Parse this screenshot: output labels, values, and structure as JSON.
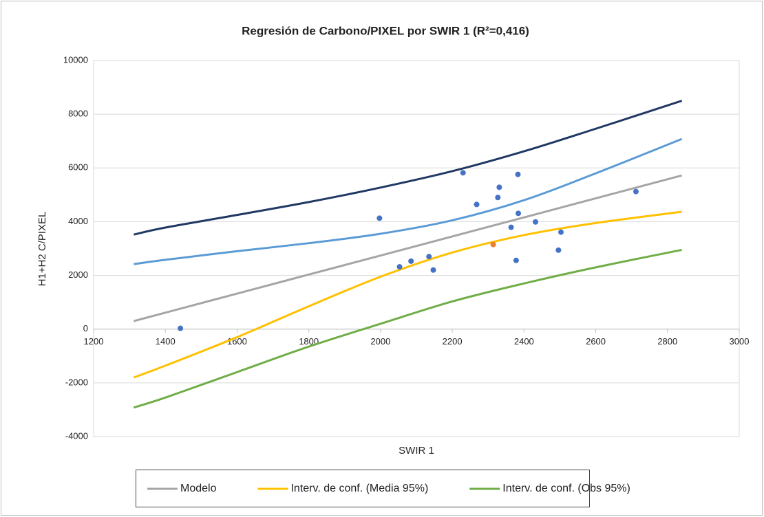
{
  "chart_data": {
    "type": "scatter",
    "title": "Regresión de Carbono/PIXEL por SWIR 1 (R²=0,416)",
    "x_label": "SWIR 1",
    "y_label": "H1+H2 C/PIXEL",
    "xlim": [
      1200,
      3000
    ],
    "xticks": [
      1200,
      1400,
      1600,
      1800,
      2000,
      2200,
      2400,
      2600,
      2800,
      3000
    ],
    "ylim": [
      -4000,
      10000
    ],
    "yticks": [
      -4000,
      -2000,
      0,
      2000,
      4000,
      6000,
      8000,
      10000
    ],
    "grid": true,
    "legend": "bottom",
    "series": [
      {
        "name": "Modelo",
        "type": "line",
        "color": "#a5a5a5",
        "x": [
          1312,
          1400,
          1600,
          1800,
          2000,
          2200,
          2400,
          2600,
          2840
        ],
        "values": [
          300,
          612,
          1322,
          2031,
          2740,
          3450,
          4159,
          4869,
          5720
        ]
      },
      {
        "name": "Interv. de conf. (Media 95%)",
        "type": "line",
        "color": "#ffc000",
        "x": [
          1312,
          1400,
          1600,
          1800,
          2000,
          2200,
          2400,
          2600,
          2840
        ],
        "values": [
          -1800,
          -1360,
          -300,
          850,
          1950,
          2850,
          3500,
          3950,
          4370
        ]
      },
      {
        "name": "Interv. de conf. (Obs 95%)",
        "type": "line",
        "color": "#70ad47",
        "x": [
          1312,
          1400,
          1600,
          1800,
          2000,
          2200,
          2400,
          2600,
          2840
        ],
        "values": [
          -2920,
          -2550,
          -1600,
          -650,
          200,
          1030,
          1700,
          2300,
          2950
        ]
      },
      {
        "type": "line",
        "color": "#5b9bd5",
        "x": [
          1312,
          1400,
          1600,
          1800,
          2000,
          2200,
          2400,
          2600,
          2840
        ],
        "values": [
          2420,
          2580,
          2900,
          3200,
          3550,
          4050,
          4800,
          5800,
          7080
        ]
      },
      {
        "type": "line",
        "color": "#203864",
        "x": [
          1312,
          1400,
          1600,
          1800,
          2000,
          2200,
          2400,
          2600,
          2840
        ],
        "values": [
          3520,
          3780,
          4250,
          4730,
          5270,
          5880,
          6620,
          7460,
          8500
        ]
      },
      {
        "type": "scatter",
        "color": "#4472c4",
        "x": [
          1442,
          1997,
          2053,
          2085,
          2135,
          2147,
          2230,
          2268,
          2327,
          2331,
          2364,
          2378,
          2383,
          2384,
          2432,
          2496,
          2503,
          2712
        ],
        "values": [
          30,
          4130,
          2320,
          2530,
          2700,
          2200,
          5820,
          4640,
          4900,
          5280,
          3790,
          2560,
          5760,
          4310,
          3990,
          2940,
          3610,
          5120
        ]
      },
      {
        "type": "scatter",
        "color": "#ed7d31",
        "x": [
          2314
        ],
        "values": [
          3150
        ]
      }
    ]
  }
}
